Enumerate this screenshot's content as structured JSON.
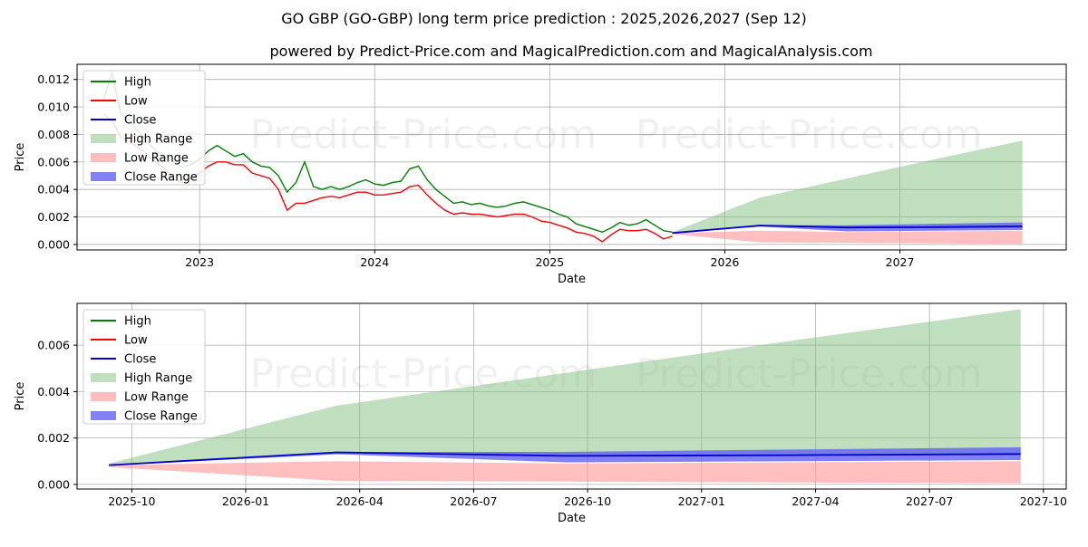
{
  "title": "GO GBP (GO-GBP) long term price prediction : 2025,2026,2027 (Sep 12)",
  "subtitle": "powered by Predict-Price.com and MagicalPrediction.com and MagicalAnalysis.com",
  "watermark": "Predict-Price.com",
  "colors": {
    "high": "#008000",
    "low": "#ff0000",
    "close": "#0000cc",
    "high_range": "#7fbf7f",
    "low_range": "#ff9c9c",
    "close_range": "#6262f2",
    "grid": "#b0b0b0"
  },
  "chart_data": [
    {
      "type": "line",
      "panel": "top",
      "title": "GO GBP (GO-GBP) long term price prediction : 2025,2026,2027 (Sep 12)",
      "xlabel": "Date",
      "ylabel": "Price",
      "xlim": [
        2022.3,
        2027.95
      ],
      "ylim": [
        -0.0004,
        0.0131
      ],
      "x_ticks": [
        2023,
        2024,
        2025,
        2026,
        2027
      ],
      "x_tick_labels": [
        "2023",
        "2024",
        "2025",
        "2026",
        "2027"
      ],
      "y_ticks": [
        0.0,
        0.002,
        0.004,
        0.006,
        0.008,
        0.01,
        0.012
      ],
      "y_tick_labels": [
        "0.000",
        "0.002",
        "0.004",
        "0.006",
        "0.008",
        "0.010",
        "0.012"
      ],
      "grid": true,
      "legend": {
        "position": "top-left",
        "entries": [
          "High",
          "Low",
          "Close",
          "High Range",
          "Low Range",
          "Close Range"
        ]
      },
      "history": {
        "x": [
          2022.45,
          2022.5,
          2022.55,
          2022.6,
          2022.65,
          2022.7,
          2022.75,
          2022.8,
          2022.85,
          2022.9,
          2022.95,
          2023.0,
          2023.05,
          2023.1,
          2023.15,
          2023.2,
          2023.25,
          2023.3,
          2023.35,
          2023.4,
          2023.45,
          2023.5,
          2023.55,
          2023.6,
          2023.65,
          2023.7,
          2023.75,
          2023.8,
          2023.85,
          2023.9,
          2023.95,
          2024.0,
          2024.05,
          2024.1,
          2024.15,
          2024.2,
          2024.25,
          2024.3,
          2024.35,
          2024.4,
          2024.45,
          2024.5,
          2024.55,
          2024.6,
          2024.65,
          2024.7,
          2024.75,
          2024.8,
          2024.85,
          2024.9,
          2024.95,
          2025.0,
          2025.05,
          2025.1,
          2025.15,
          2025.2,
          2025.25,
          2025.3,
          2025.35,
          2025.4,
          2025.45,
          2025.5,
          2025.55,
          2025.6,
          2025.65,
          2025.7
        ],
        "high": [
          0.0105,
          0.0125,
          0.0095,
          0.009,
          0.0082,
          0.0075,
          0.0068,
          0.0065,
          0.006,
          0.0056,
          0.0058,
          0.0062,
          0.0068,
          0.0072,
          0.0068,
          0.0064,
          0.0066,
          0.006,
          0.0057,
          0.0056,
          0.005,
          0.0038,
          0.0045,
          0.006,
          0.0042,
          0.004,
          0.0042,
          0.004,
          0.0042,
          0.0045,
          0.0047,
          0.0044,
          0.0043,
          0.0045,
          0.0046,
          0.0055,
          0.0057,
          0.0047,
          0.004,
          0.0035,
          0.003,
          0.0031,
          0.0029,
          0.003,
          0.0028,
          0.0027,
          0.0028,
          0.003,
          0.0031,
          0.0029,
          0.0027,
          0.0025,
          0.0022,
          0.002,
          0.0015,
          0.0013,
          0.0011,
          0.0009,
          0.0012,
          0.0016,
          0.0014,
          0.0015,
          0.0018,
          0.0014,
          0.001,
          0.0009
        ],
        "low": [
          0.0095,
          0.009,
          0.0078,
          0.0075,
          0.007,
          0.0066,
          0.006,
          0.0055,
          0.0048,
          0.0045,
          0.0048,
          0.0052,
          0.0057,
          0.006,
          0.006,
          0.0058,
          0.0058,
          0.0052,
          0.005,
          0.0048,
          0.004,
          0.0025,
          0.003,
          0.003,
          0.0032,
          0.0034,
          0.0035,
          0.0034,
          0.0036,
          0.0038,
          0.0038,
          0.0036,
          0.0036,
          0.0037,
          0.0038,
          0.0042,
          0.0043,
          0.0036,
          0.003,
          0.0025,
          0.0022,
          0.0023,
          0.0022,
          0.0022,
          0.0021,
          0.002,
          0.0021,
          0.0022,
          0.0022,
          0.002,
          0.0017,
          0.0016,
          0.0014,
          0.0012,
          0.0009,
          0.0008,
          0.0006,
          0.0002,
          0.0007,
          0.0011,
          0.001,
          0.001,
          0.0011,
          0.0008,
          0.0004,
          0.0006
        ]
      },
      "forecast": {
        "x": [
          2025.7,
          2026.2,
          2026.7,
          2027.2,
          2027.7
        ],
        "close": [
          0.00083,
          0.00138,
          0.00123,
          0.00126,
          0.00131
        ],
        "high_range_upper": [
          0.0009,
          0.0034,
          0.0048,
          0.0062,
          0.00755
        ],
        "high_range_lower": [
          0.00083,
          0.00138,
          0.00123,
          0.00126,
          0.00131
        ],
        "low_range_upper": [
          0.00083,
          0.001,
          0.0009,
          0.00095,
          0.001
        ],
        "low_range_lower": [
          0.00075,
          0.00015,
          0.00012,
          8e-05,
          5e-05
        ],
        "close_range_upper": [
          0.00085,
          0.0014,
          0.0014,
          0.0015,
          0.0016
        ],
        "close_range_lower": [
          0.00081,
          0.0013,
          0.00095,
          0.001,
          0.00105
        ]
      }
    },
    {
      "type": "area",
      "panel": "bottom",
      "xlabel": "Date",
      "ylabel": "Price",
      "xlim": [
        2025.63,
        2027.8
      ],
      "ylim": [
        -0.0002,
        0.0078
      ],
      "x_ticks": [
        2025.75,
        2026.0,
        2026.25,
        2026.5,
        2026.75,
        2027.0,
        2027.25,
        2027.5,
        2027.75
      ],
      "x_tick_labels": [
        "2025-10",
        "2026-01",
        "2026-04",
        "2026-07",
        "2026-10",
        "2027-01",
        "2027-04",
        "2027-07",
        "2027-10"
      ],
      "y_ticks": [
        0.0,
        0.002,
        0.004,
        0.006
      ],
      "y_tick_labels": [
        "0.000",
        "0.002",
        "0.004",
        "0.006"
      ],
      "grid": true,
      "legend": {
        "position": "top-left",
        "entries": [
          "High",
          "Low",
          "Close",
          "High Range",
          "Low Range",
          "Close Range"
        ]
      },
      "forecast": {
        "x": [
          2025.7,
          2026.2,
          2026.7,
          2027.2,
          2027.7
        ],
        "close": [
          0.00083,
          0.00138,
          0.00123,
          0.00126,
          0.00131
        ],
        "high_range_upper": [
          0.0009,
          0.0034,
          0.0048,
          0.0062,
          0.00755
        ],
        "high_range_lower": [
          0.00083,
          0.00138,
          0.00123,
          0.00126,
          0.00131
        ],
        "low_range_upper": [
          0.00083,
          0.001,
          0.0009,
          0.00095,
          0.001
        ],
        "low_range_lower": [
          0.00075,
          0.00015,
          0.00012,
          8e-05,
          5e-05
        ],
        "close_range_upper": [
          0.00085,
          0.0014,
          0.0014,
          0.0015,
          0.0016
        ],
        "close_range_lower": [
          0.00081,
          0.0013,
          0.00095,
          0.001,
          0.00105
        ]
      }
    }
  ]
}
